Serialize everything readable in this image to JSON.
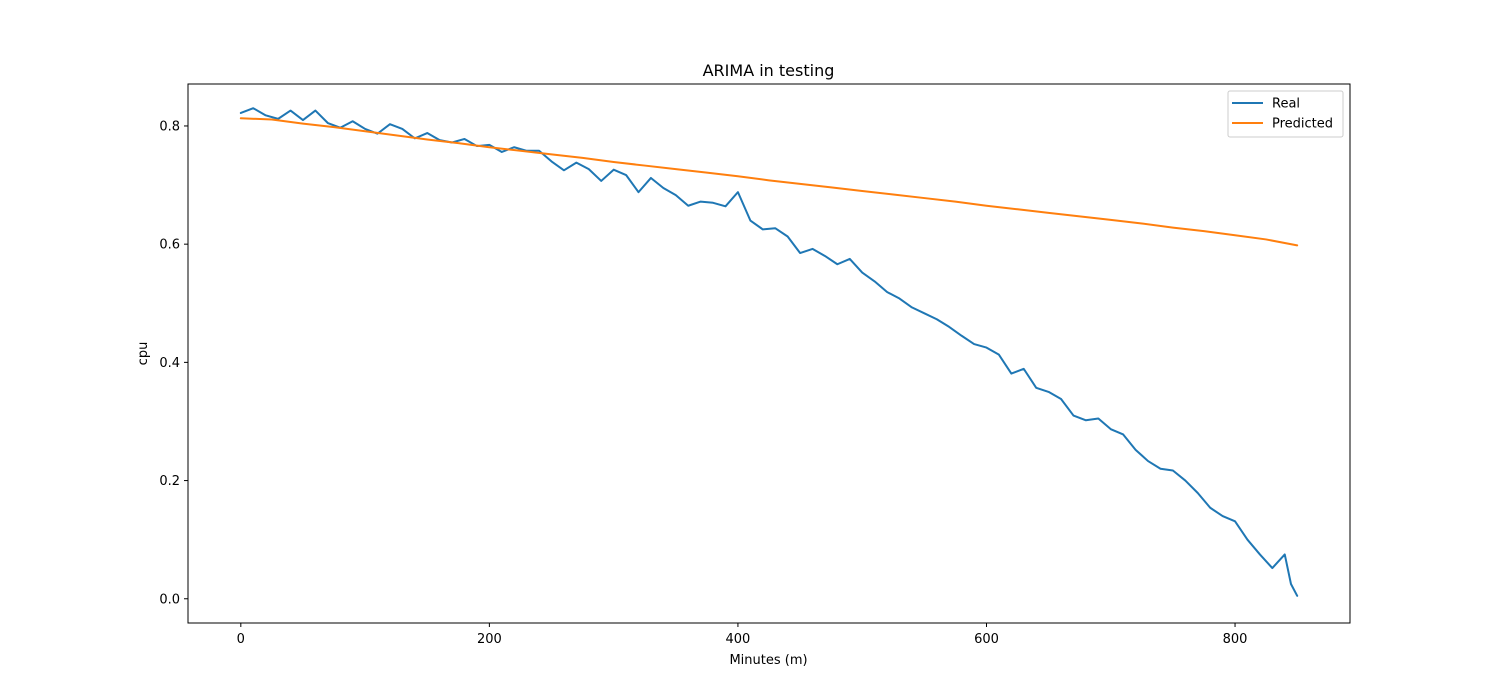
{
  "chart_data": {
    "type": "line",
    "title": "ARIMA in testing",
    "xlabel": "Minutes (m)",
    "ylabel": "cpu",
    "xlim": [
      -42.5,
      892.5
    ],
    "ylim": [
      -0.041,
      0.871
    ],
    "xticks": [
      0,
      200,
      400,
      600,
      800
    ],
    "xtick_labels": [
      "0",
      "200",
      "400",
      "600",
      "800"
    ],
    "yticks": [
      0.0,
      0.2,
      0.4,
      0.6,
      0.8
    ],
    "ytick_labels": [
      "0.0",
      "0.2",
      "0.4",
      "0.6",
      "0.8"
    ],
    "grid": false,
    "legend_position": "top-right",
    "series": [
      {
        "name": "Real",
        "color": "#1f77b4",
        "x": [
          0,
          10,
          20,
          30,
          40,
          50,
          60,
          70,
          80,
          90,
          100,
          110,
          120,
          130,
          140,
          150,
          160,
          170,
          180,
          190,
          200,
          210,
          220,
          230,
          240,
          250,
          260,
          270,
          280,
          290,
          300,
          310,
          320,
          330,
          340,
          350,
          360,
          370,
          380,
          390,
          400,
          410,
          420,
          430,
          440,
          450,
          460,
          470,
          480,
          490,
          500,
          510,
          520,
          530,
          540,
          550,
          560,
          570,
          580,
          590,
          600,
          610,
          620,
          630,
          640,
          650,
          660,
          670,
          680,
          690,
          700,
          710,
          720,
          730,
          740,
          750,
          760,
          770,
          780,
          790,
          800,
          810,
          820,
          830,
          840,
          845,
          850
        ],
        "y": [
          0.822,
          0.83,
          0.818,
          0.812,
          0.826,
          0.81,
          0.826,
          0.805,
          0.797,
          0.808,
          0.795,
          0.787,
          0.803,
          0.795,
          0.779,
          0.788,
          0.776,
          0.772,
          0.778,
          0.766,
          0.768,
          0.756,
          0.764,
          0.758,
          0.758,
          0.74,
          0.725,
          0.738,
          0.727,
          0.707,
          0.726,
          0.717,
          0.688,
          0.712,
          0.695,
          0.683,
          0.665,
          0.672,
          0.67,
          0.664,
          0.688,
          0.64,
          0.625,
          0.627,
          0.613,
          0.585,
          0.592,
          0.58,
          0.566,
          0.575,
          0.552,
          0.537,
          0.519,
          0.508,
          0.493,
          0.483,
          0.473,
          0.46,
          0.445,
          0.431,
          0.425,
          0.413,
          0.381,
          0.389,
          0.357,
          0.35,
          0.338,
          0.31,
          0.302,
          0.305,
          0.287,
          0.278,
          0.252,
          0.233,
          0.22,
          0.217,
          0.2,
          0.179,
          0.154,
          0.14,
          0.131,
          0.1,
          0.075,
          0.052,
          0.075,
          0.025,
          0.005
        ]
      },
      {
        "name": "Predicted",
        "color": "#ff7f0e",
        "x": [
          0,
          25,
          50,
          75,
          100,
          125,
          150,
          175,
          200,
          225,
          250,
          275,
          300,
          325,
          350,
          375,
          400,
          425,
          450,
          475,
          500,
          525,
          550,
          575,
          600,
          625,
          650,
          675,
          700,
          725,
          750,
          775,
          800,
          825,
          850
        ],
        "y": [
          0.813,
          0.811,
          0.804,
          0.798,
          0.791,
          0.784,
          0.777,
          0.771,
          0.764,
          0.758,
          0.752,
          0.746,
          0.739,
          0.733,
          0.727,
          0.721,
          0.715,
          0.708,
          0.702,
          0.696,
          0.69,
          0.684,
          0.678,
          0.672,
          0.665,
          0.659,
          0.653,
          0.647,
          0.641,
          0.635,
          0.628,
          0.622,
          0.615,
          0.608,
          0.598
        ]
      }
    ]
  }
}
